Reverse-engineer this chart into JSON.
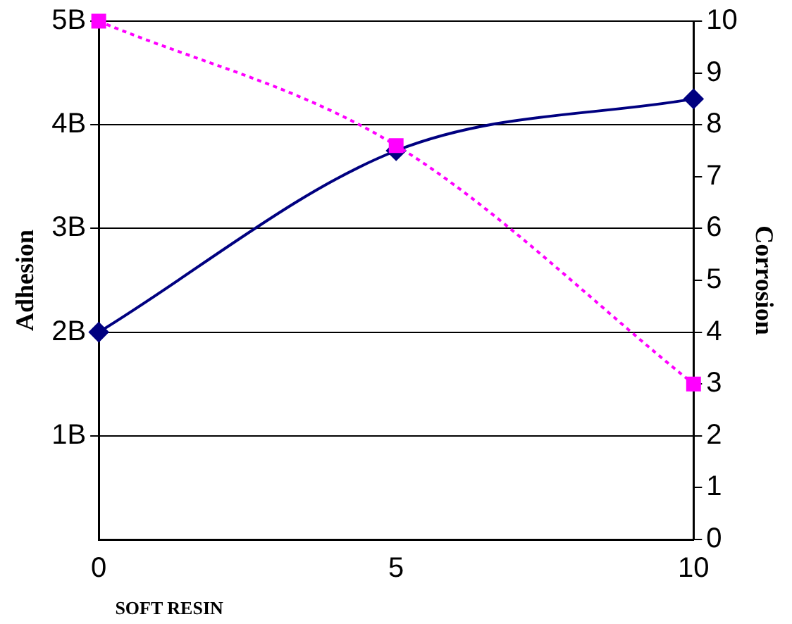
{
  "chart_data": {
    "type": "line",
    "ylabel": "Adhesion",
    "y2label": "Corrosion",
    "x": [
      0,
      5,
      10
    ],
    "xlim": [
      0,
      10
    ],
    "xticks": [
      0,
      5,
      10
    ],
    "ylim": [
      0,
      5
    ],
    "yticks": [
      {
        "value": 1,
        "label": "1B"
      },
      {
        "value": 2,
        "label": "2B"
      },
      {
        "value": 3,
        "label": "3B"
      },
      {
        "value": 4,
        "label": "4B"
      },
      {
        "value": 5,
        "label": "5B"
      }
    ],
    "y2lim": [
      0,
      10
    ],
    "y2ticks": [
      0,
      1,
      2,
      3,
      4,
      5,
      6,
      7,
      8,
      9,
      10
    ],
    "series": [
      {
        "color": "#000080",
        "values": [
          2,
          3.75,
          4.25
        ],
        "marker": "diamond",
        "line_style": "solid"
      },
      {
        "color": "#ff00ff",
        "values": [
          10,
          7.6,
          3
        ],
        "axis": "y2",
        "marker": "square",
        "line_style": "dotted"
      }
    ],
    "grid": "y",
    "legend": false,
    "annotations": [
      "SOFT RESIN"
    ]
  }
}
